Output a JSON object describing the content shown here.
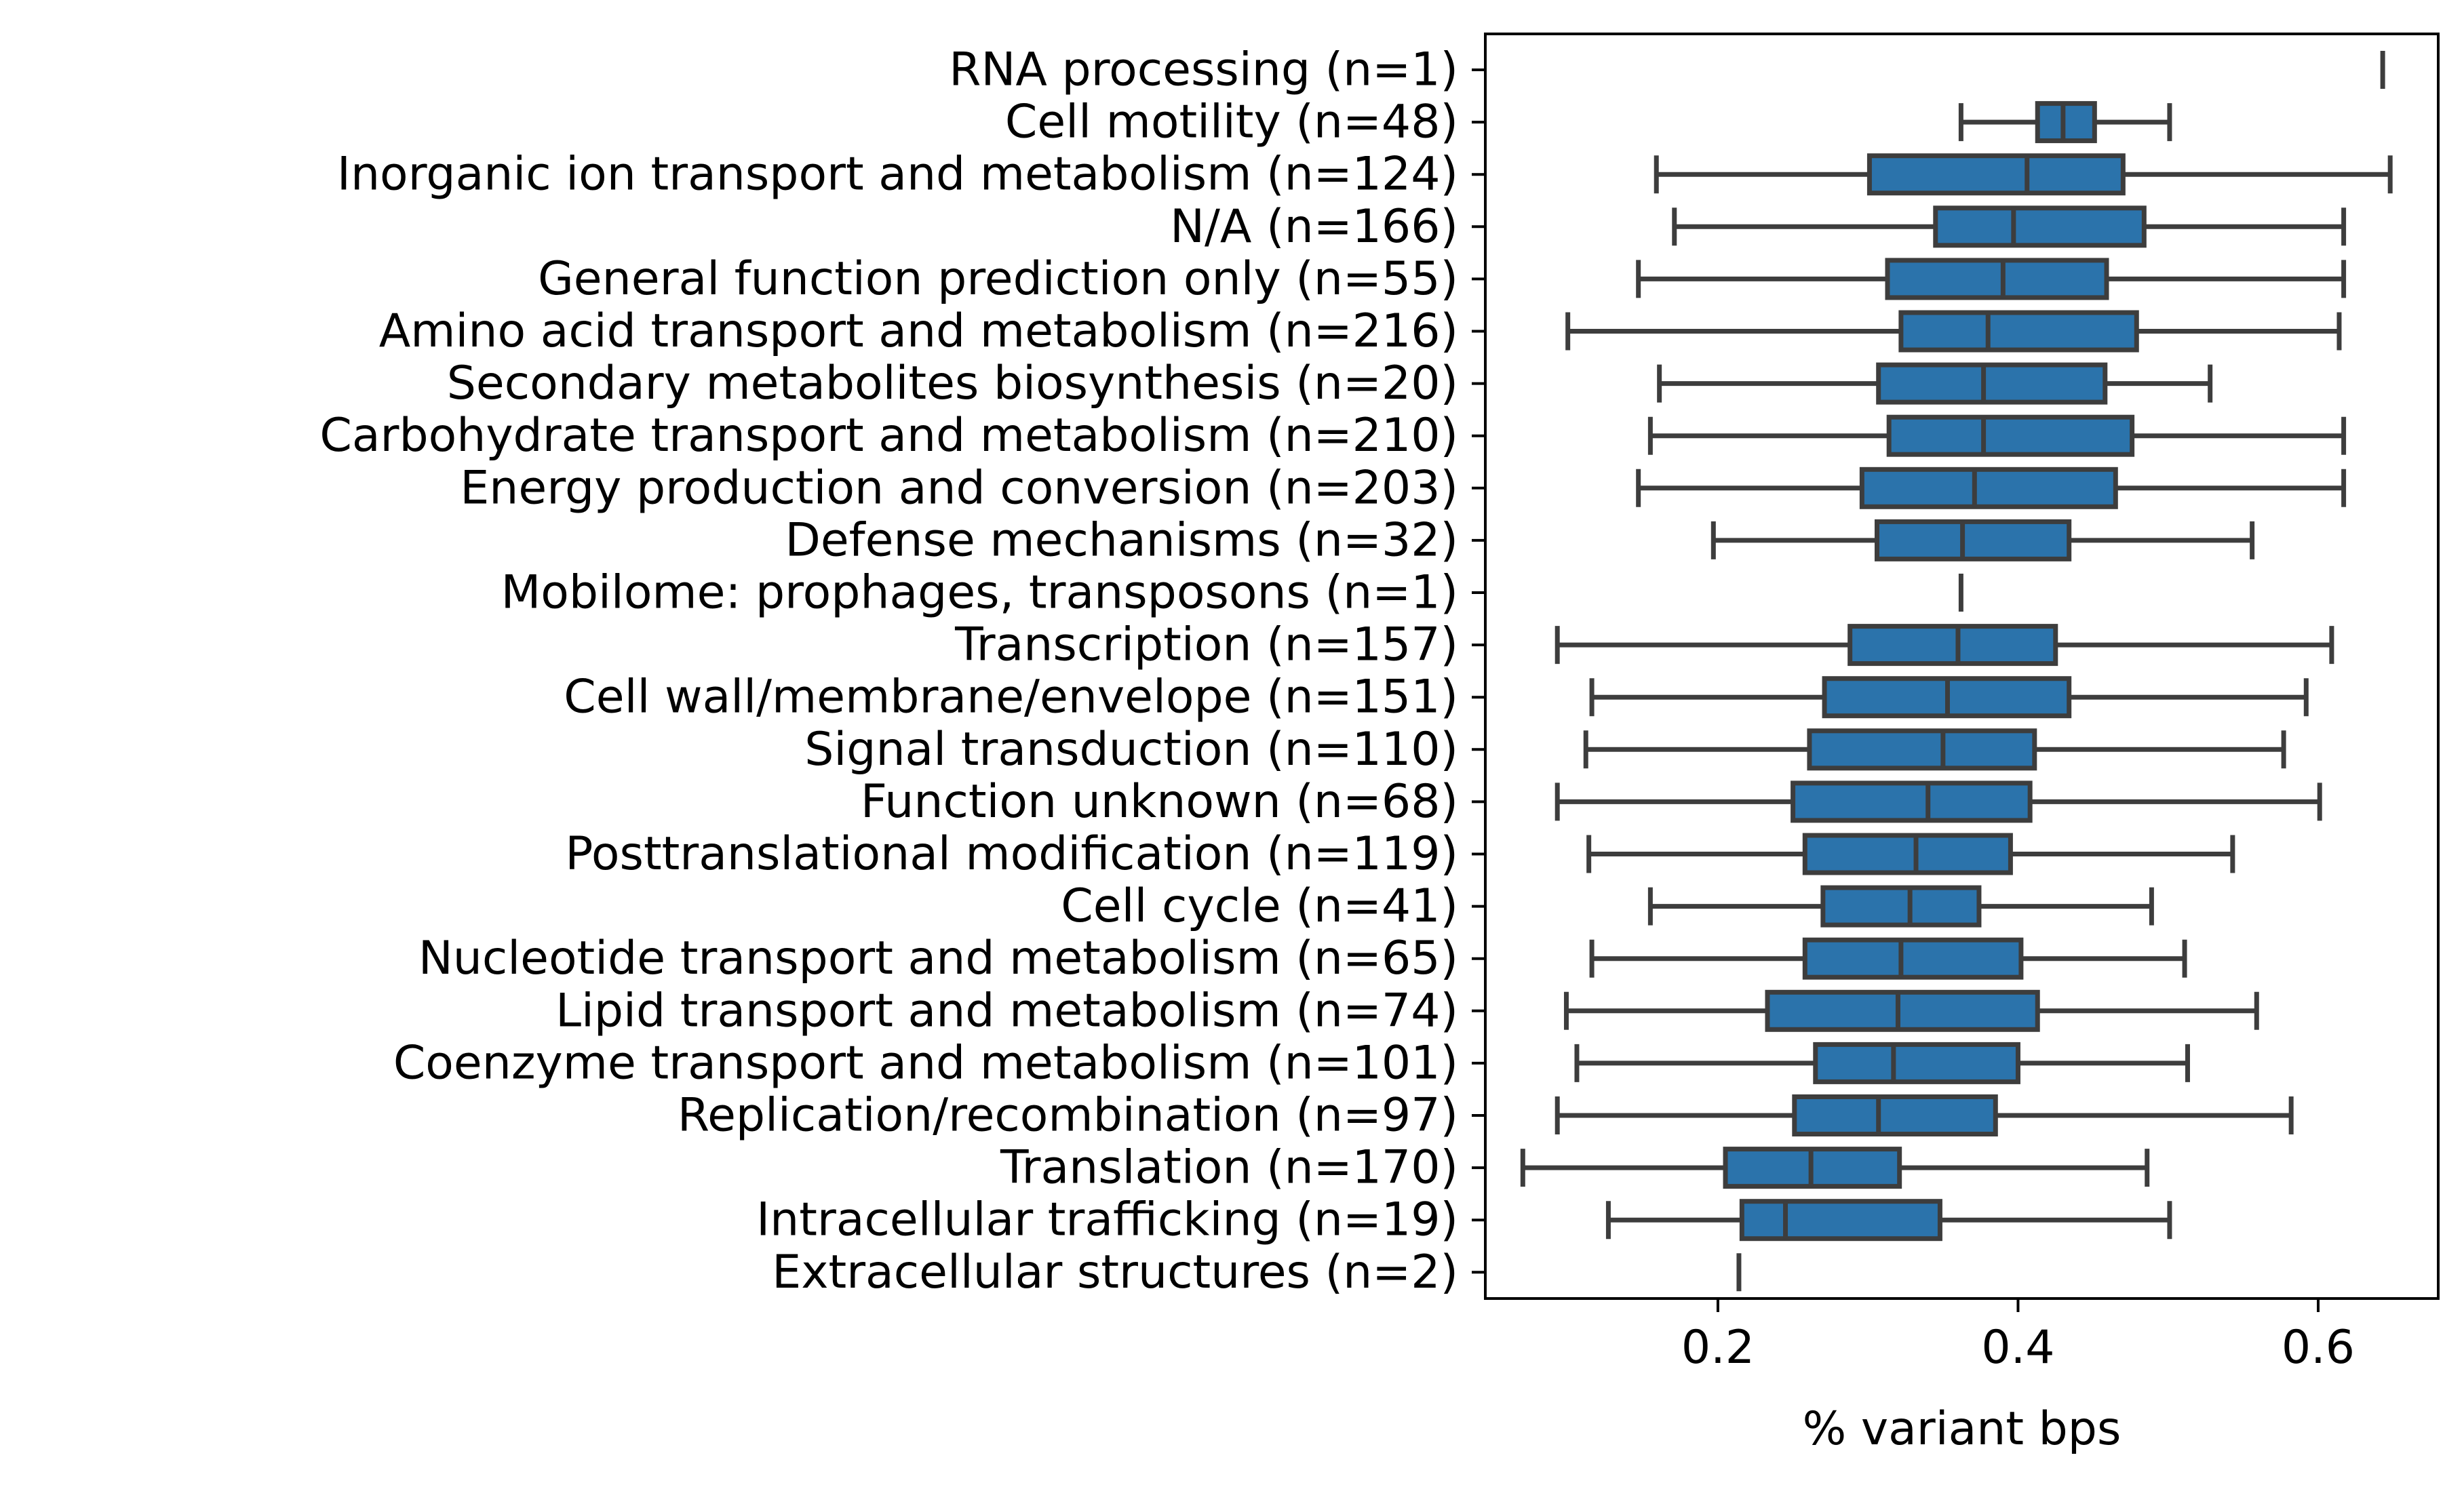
{
  "chart_data": {
    "type": "boxplot",
    "orientation": "horizontal",
    "xlabel": "% variant bps",
    "ylabel": "",
    "xlim": [
      0.045,
      0.68
    ],
    "xticks": [
      0.2,
      0.4,
      0.6
    ],
    "xtick_labels": [
      "0.2",
      "0.4",
      "0.6"
    ],
    "grid": false,
    "colors": {
      "box_fill": "#2b73ab",
      "line": "#3d3d3d"
    },
    "categories": [
      "RNA processing (n=1)",
      "Cell motility (n=48)",
      "Inorganic ion transport and metabolism (n=124)",
      "N/A (n=166)",
      "General function prediction only (n=55)",
      "Amino acid transport and metabolism (n=216)",
      "Secondary metabolites biosynthesis (n=20)",
      "Carbohydrate transport and metabolism (n=210)",
      "Energy production and conversion (n=203)",
      "Defense mechanisms (n=32)",
      "Mobilome: prophages, transposons (n=1)",
      "Transcription (n=157)",
      "Cell wall/membrane/envelope (n=151)",
      "Signal transduction (n=110)",
      "Function unknown (n=68)",
      "Posttranslational modification (n=119)",
      "Cell cycle (n=41)",
      "Nucleotide transport and metabolism (n=65)",
      "Lipid transport and metabolism (n=74)",
      "Coenzyme transport and metabolism (n=101)",
      "Replication/recombination (n=97)",
      "Translation (n=170)",
      "Intracellular trafficking (n=19)",
      "Extracellular structures (n=2)"
    ],
    "boxes": [
      {
        "min": 0.643,
        "q1": 0.643,
        "median": 0.643,
        "q3": 0.643,
        "max": 0.643
      },
      {
        "min": 0.362,
        "q1": 0.413,
        "median": 0.43,
        "q3": 0.451,
        "max": 0.501
      },
      {
        "min": 0.159,
        "q1": 0.301,
        "median": 0.406,
        "q3": 0.47,
        "max": 0.648
      },
      {
        "min": 0.171,
        "q1": 0.345,
        "median": 0.397,
        "q3": 0.484,
        "max": 0.617
      },
      {
        "min": 0.147,
        "q1": 0.313,
        "median": 0.39,
        "q3": 0.459,
        "max": 0.617
      },
      {
        "min": 0.1,
        "q1": 0.322,
        "median": 0.38,
        "q3": 0.479,
        "max": 0.614
      },
      {
        "min": 0.161,
        "q1": 0.307,
        "median": 0.377,
        "q3": 0.458,
        "max": 0.528
      },
      {
        "min": 0.155,
        "q1": 0.314,
        "median": 0.377,
        "q3": 0.476,
        "max": 0.617
      },
      {
        "min": 0.147,
        "q1": 0.296,
        "median": 0.371,
        "q3": 0.465,
        "max": 0.617
      },
      {
        "min": 0.197,
        "q1": 0.306,
        "median": 0.363,
        "q3": 0.434,
        "max": 0.556
      },
      {
        "min": 0.362,
        "q1": 0.362,
        "median": 0.362,
        "q3": 0.362,
        "max": 0.362
      },
      {
        "min": 0.093,
        "q1": 0.288,
        "median": 0.36,
        "q3": 0.425,
        "max": 0.609
      },
      {
        "min": 0.116,
        "q1": 0.271,
        "median": 0.353,
        "q3": 0.434,
        "max": 0.592
      },
      {
        "min": 0.112,
        "q1": 0.261,
        "median": 0.35,
        "q3": 0.411,
        "max": 0.577
      },
      {
        "min": 0.093,
        "q1": 0.25,
        "median": 0.34,
        "q3": 0.408,
        "max": 0.601
      },
      {
        "min": 0.114,
        "q1": 0.258,
        "median": 0.332,
        "q3": 0.395,
        "max": 0.543
      },
      {
        "min": 0.155,
        "q1": 0.27,
        "median": 0.328,
        "q3": 0.374,
        "max": 0.489
      },
      {
        "min": 0.116,
        "q1": 0.258,
        "median": 0.322,
        "q3": 0.402,
        "max": 0.511
      },
      {
        "min": 0.099,
        "q1": 0.233,
        "median": 0.32,
        "q3": 0.413,
        "max": 0.559
      },
      {
        "min": 0.106,
        "q1": 0.265,
        "median": 0.317,
        "q3": 0.4,
        "max": 0.513
      },
      {
        "min": 0.093,
        "q1": 0.251,
        "median": 0.307,
        "q3": 0.385,
        "max": 0.582
      },
      {
        "min": 0.07,
        "q1": 0.205,
        "median": 0.262,
        "q3": 0.321,
        "max": 0.486
      },
      {
        "min": 0.127,
        "q1": 0.216,
        "median": 0.245,
        "q3": 0.348,
        "max": 0.501
      },
      {
        "min": 0.214,
        "q1": 0.214,
        "median": 0.214,
        "q3": 0.214,
        "max": 0.214
      }
    ]
  }
}
